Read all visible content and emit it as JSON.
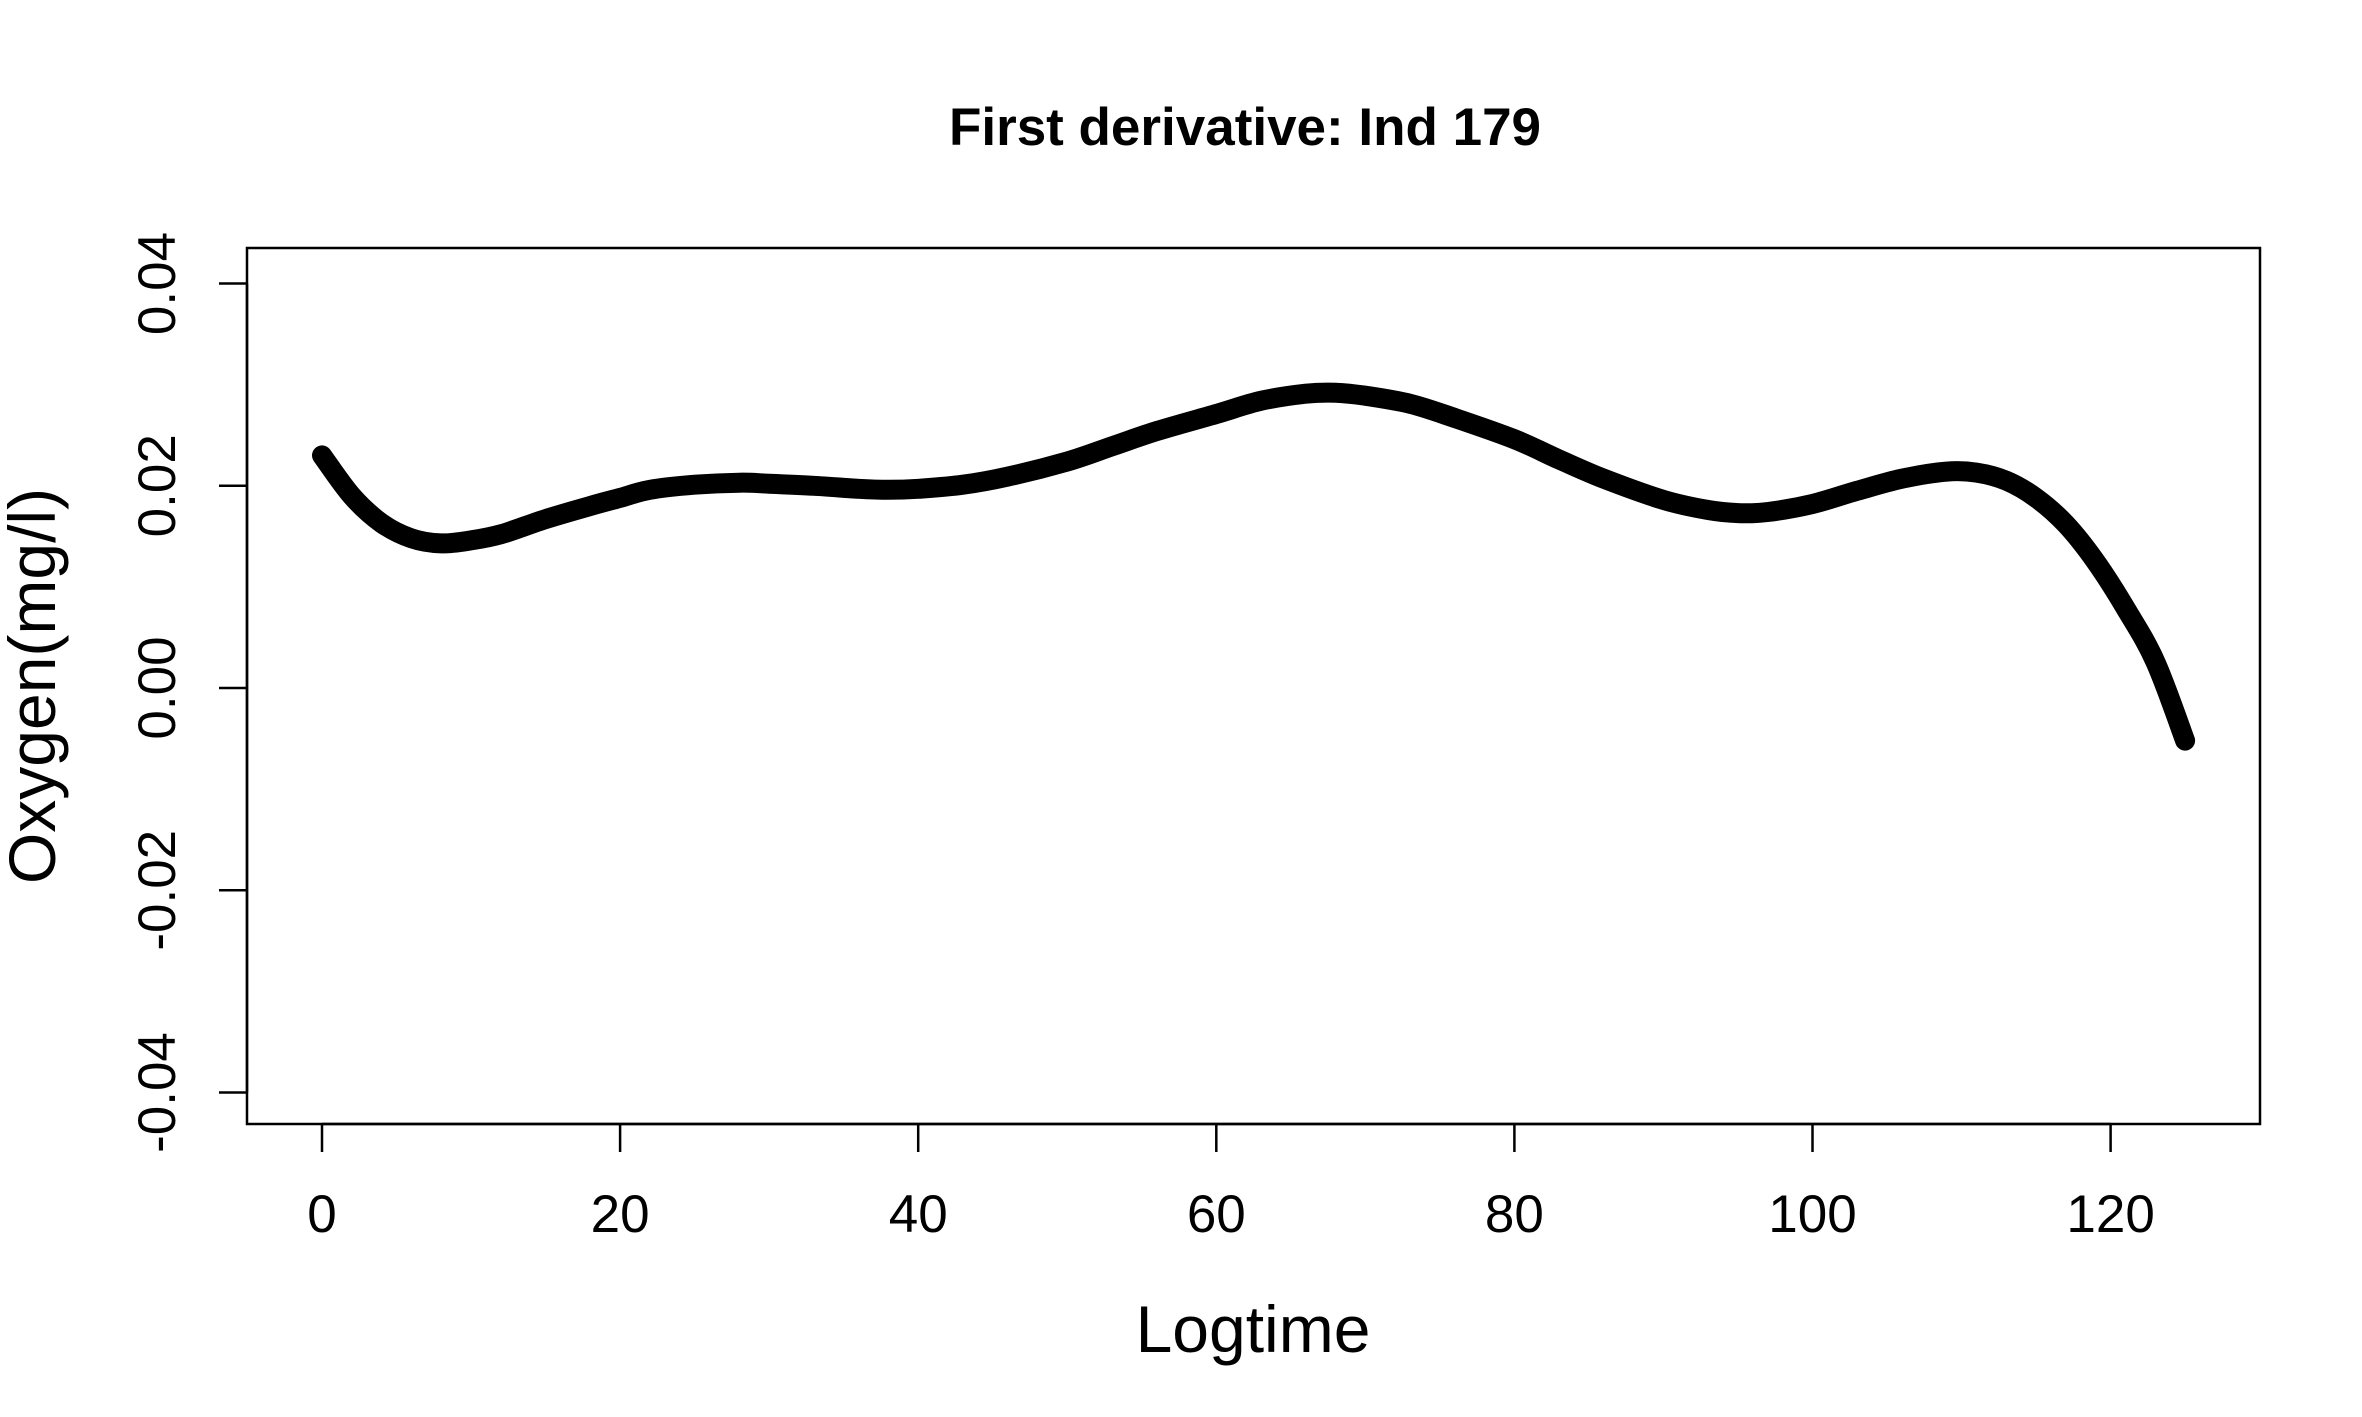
{
  "chart_data": {
    "type": "line",
    "title": "First derivative: Ind  179",
    "xlabel": "Logtime",
    "ylabel": "Oxygen(mg/l)",
    "xlim": [
      -5,
      130
    ],
    "ylim": [
      -0.04,
      0.04
    ],
    "x_ticks": [
      0,
      20,
      40,
      60,
      80,
      100,
      120
    ],
    "x_tick_labels": [
      "0",
      "20",
      "40",
      "60",
      "80",
      "100",
      "120"
    ],
    "y_ticks": [
      -0.04,
      -0.02,
      0.0,
      0.02,
      0.04
    ],
    "y_tick_labels": [
      "-0.04",
      "-0.02",
      "0.00",
      "0.02",
      "0.04"
    ],
    "grid": false,
    "legend": "none",
    "line_color": "#000000",
    "series": [
      {
        "x": [
          0,
          2,
          4,
          6,
          8,
          10,
          12,
          15,
          18,
          20,
          22,
          25,
          28,
          30,
          33,
          36,
          38,
          40,
          43,
          46,
          50,
          53,
          56,
          60,
          63,
          66,
          68,
          70,
          73,
          76,
          80,
          83,
          86,
          90,
          93,
          95,
          97,
          100,
          103,
          106,
          109,
          111,
          113,
          115,
          117,
          119,
          121,
          123,
          125
        ],
        "y": [
          0.023,
          0.019,
          0.0163,
          0.0148,
          0.0143,
          0.0146,
          0.0152,
          0.0167,
          0.018,
          0.0188,
          0.0196,
          0.0201,
          0.0203,
          0.0202,
          0.02,
          0.0197,
          0.0196,
          0.0197,
          0.0201,
          0.0209,
          0.0224,
          0.0239,
          0.0254,
          0.0271,
          0.0284,
          0.0291,
          0.0292,
          0.0289,
          0.0281,
          0.0267,
          0.0246,
          0.0226,
          0.0207,
          0.0186,
          0.0176,
          0.0173,
          0.0174,
          0.0182,
          0.0195,
          0.0207,
          0.0214,
          0.0213,
          0.0205,
          0.0188,
          0.0162,
          0.0125,
          0.0079,
          0.0026,
          -0.0052
        ]
      }
    ]
  }
}
